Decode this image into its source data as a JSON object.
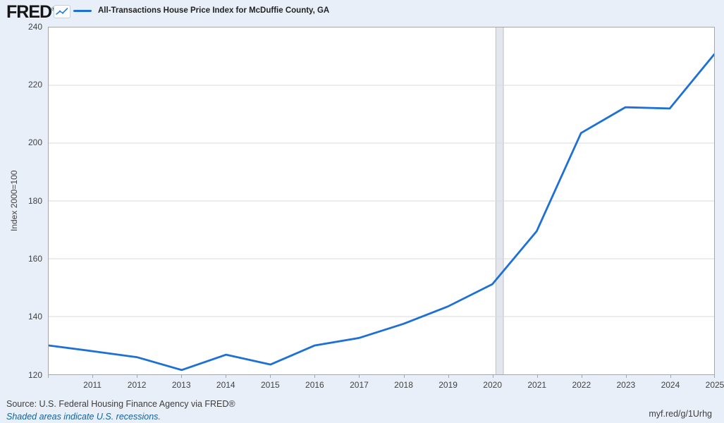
{
  "header": {
    "logo": "FRED",
    "logo_suffix": "®",
    "legend_label": "All-Transactions House Price Index for McDuffie County, GA"
  },
  "chart_data": {
    "type": "line",
    "title": "All-Transactions House Price Index for McDuffie County, GA",
    "ylabel": "Index 2000=100",
    "x": [
      2010,
      2011,
      2012,
      2013,
      2014,
      2015,
      2016,
      2017,
      2018,
      2019,
      2020,
      2021,
      2022,
      2023,
      2024,
      2025
    ],
    "values": [
      130.0,
      128.0,
      125.9,
      121.5,
      126.8,
      123.4,
      130.0,
      132.6,
      137.5,
      143.5,
      151.2,
      169.5,
      203.5,
      212.4,
      212.0,
      230.7
    ],
    "xlim": [
      2010,
      2025
    ],
    "ylim": [
      120,
      240
    ],
    "yticks": [
      120,
      140,
      160,
      180,
      200,
      220,
      240
    ],
    "xticks": [
      2011,
      2012,
      2013,
      2014,
      2015,
      2016,
      2017,
      2018,
      2019,
      2020,
      2021,
      2022,
      2023,
      2024,
      2025
    ],
    "grid": true,
    "legend_position": "top-left",
    "line_color": "#1d70d6",
    "grid_color": "#d9d9d9",
    "recession_fill": "#e3e7ed",
    "recession_edge": "#bac0c9",
    "recession_bands": [
      {
        "start": 2020.08,
        "end": 2020.25
      }
    ]
  },
  "footer": {
    "source": "Source: U.S. Federal Housing Finance Agency via FRED®",
    "recession_note": "Shaded areas indicate U.S. recessions.",
    "permalink": "myf.red/g/1Urhg"
  },
  "colors": {
    "accent_line": "#1d70d6",
    "link_blue": "#1261a0",
    "background": "#e9eff8"
  }
}
